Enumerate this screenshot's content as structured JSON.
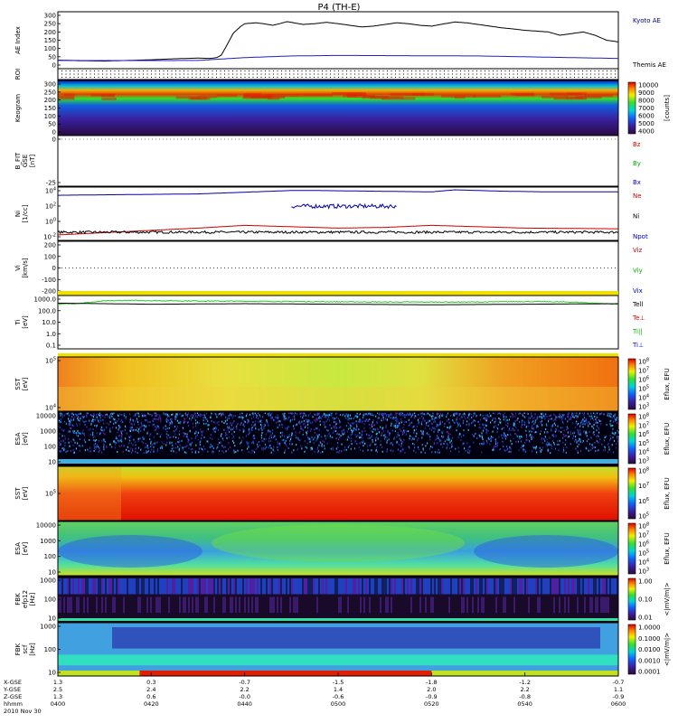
{
  "title": "P4 (TH-E)",
  "chart_data": {
    "type": "line",
    "title": "P4 (TH-E)",
    "x_axis": {
      "row_labels": [
        "X-GSE",
        "Y-GSE",
        "Z-GSE",
        "hhmm",
        "2010 Nov 30"
      ],
      "ticks": [
        {
          "X-GSE": "1.3",
          "Y-GSE": "2.5",
          "Z-GSE": "1.3",
          "hhmm": "0400"
        },
        {
          "X-GSE": "0.3",
          "Y-GSE": "2.4",
          "Z-GSE": "0.6",
          "hhmm": "0420"
        },
        {
          "X-GSE": "-0.7",
          "Y-GSE": "2.2",
          "Z-GSE": "-0.0",
          "hhmm": "0440"
        },
        {
          "X-GSE": "-1.5",
          "Y-GSE": "1.4",
          "Z-GSE": "-0.6",
          "hhmm": "0500"
        },
        {
          "X-GSE": "-1.8",
          "Y-GSE": "2.0",
          "Z-GSE": "-0.9",
          "hhmm": "0520"
        },
        {
          "X-GSE": "-1.2",
          "Y-GSE": "2.2",
          "Z-GSE": "-0.8",
          "hhmm": "0540"
        },
        {
          "X-GSE": "-0.7",
          "Y-GSE": "1.1",
          "Z-GSE": "-0.9",
          "hhmm": "0600"
        }
      ]
    },
    "panels": [
      {
        "id": "ae",
        "ylabel": "AE Index",
        "yticks": [
          "300",
          "250",
          "200",
          "150",
          "100",
          "50",
          "0"
        ],
        "ylim": [
          0,
          300
        ],
        "legend": [
          {
            "label": "Kyoto AE",
            "color": "#000080"
          },
          {
            "label": "Themis AE",
            "color": "#000000"
          }
        ],
        "series": [
          {
            "name": "Kyoto AE",
            "color": "#000000",
            "x": [
              0,
              5,
              10,
              15,
              20,
              25,
              30,
              35,
              40,
              45,
              50,
              55,
              60,
              65,
              68,
              70,
              72,
              75,
              78,
              80,
              85,
              88,
              90,
              92,
              95,
              98,
              100,
              105,
              110,
              115,
              120,
              125,
              130,
              135,
              140,
              145,
              150,
              155,
              160,
              165,
              170,
              175,
              180,
              185,
              190,
              195,
              200,
              205,
              210,
              215,
              220,
              225,
              230,
              235,
              240
            ],
            "y": [
              30,
              28,
              26,
              25,
              24,
              26,
              28,
              30,
              32,
              35,
              38,
              40,
              42,
              40,
              45,
              60,
              110,
              190,
              230,
              250,
              255,
              250,
              245,
              240,
              250,
              262,
              258,
              245,
              250,
              258,
              250,
              240,
              230,
              235,
              245,
              255,
              250,
              240,
              235,
              248,
              260,
              255,
              245,
              235,
              225,
              218,
              210,
              205,
              200,
              180,
              190,
              200,
              180,
              150,
              140
            ]
          },
          {
            "name": "Themis AE",
            "color": "#2020c0",
            "x": [
              0,
              20,
              40,
              60,
              80,
              100,
              120,
              140,
              160,
              180,
              200,
              220,
              240
            ],
            "y": [
              28,
              27,
              27,
              28,
              45,
              55,
              58,
              57,
              56,
              55,
              50,
              45,
              40
            ]
          }
        ]
      },
      {
        "id": "roi",
        "ylabel": "ROI"
      },
      {
        "id": "keogram",
        "ylabel": "Keogram",
        "type": "heatmap",
        "yticks": [
          "300",
          "250",
          "200",
          "150",
          "100",
          "50",
          "0"
        ],
        "colorbar": {
          "label": "[counts]",
          "ticks": [
            "10000",
            "9000",
            "8000",
            "7000",
            "6000",
            "5000",
            "4000"
          ]
        }
      },
      {
        "id": "bfit",
        "ylabel": "B_FIT\nGSE\n[nT]",
        "yticks": [
          "0",
          "-25"
        ],
        "legend": [
          {
            "label": "Bz",
            "color": "#cc0000"
          },
          {
            "label": "By",
            "color": "#00aa00"
          },
          {
            "label": "Bx",
            "color": "#0000cc"
          }
        ]
      },
      {
        "id": "ni",
        "ylabel": "Ni\n[1/cc]",
        "scale": "log",
        "yticks": [
          "10^4",
          "10^2",
          "10^0",
          "10^-2"
        ],
        "legend": [
          {
            "label": "Ne",
            "color": "#cc0000"
          },
          {
            "label": "Ni",
            "color": "#000000"
          },
          {
            "label": "Npot",
            "color": "#0000aa"
          }
        ],
        "series": [
          {
            "name": "Npot",
            "color": "#0000aa",
            "x": [
              0,
              60,
              100,
              110,
              160,
              170,
              190,
              210,
              240
            ],
            "log10_y": [
              3.8,
              4.0,
              4.5,
              4.5,
              4.3,
              4.6,
              4.4,
              4.3,
              4.3
            ]
          },
          {
            "name": "Ne",
            "color": "#cc0000",
            "x": [
              0,
              60,
              80,
              100,
              120,
              140,
              160,
              180,
              200,
              240
            ],
            "log10_y": [
              -2.0,
              -1.0,
              -0.6,
              -0.8,
              -1.0,
              -0.9,
              -0.6,
              -0.8,
              -1.0,
              -1.1
            ]
          },
          {
            "name": "Ni",
            "color": "#000000",
            "x": [
              0,
              60,
              120,
              180,
              240
            ],
            "log10_y": [
              -1.6,
              -1.6,
              -1.6,
              -1.6,
              -1.6
            ]
          }
        ]
      },
      {
        "id": "vi",
        "ylabel": "Vi\n[km/s]",
        "yticks": [
          "200",
          "100",
          "0",
          "-100",
          "-200"
        ],
        "ylim": [
          -250,
          250
        ],
        "legend": [
          {
            "label": "Viz",
            "color": "#cc0000"
          },
          {
            "label": "Viy",
            "color": "#00aa00"
          },
          {
            "label": "Vix",
            "color": "#0000cc"
          }
        ]
      },
      {
        "id": "ti",
        "ylabel": "Ti\n[eV]",
        "scale": "log",
        "yticks": [
          "1000.0",
          "100.0",
          "10.0",
          "1.0",
          "0.1"
        ],
        "legend": [
          {
            "label": "Tell",
            "color": "#000000"
          },
          {
            "label": "Te⊥",
            "color": "#cc0000"
          },
          {
            "label": "Ti||",
            "color": "#00aa00"
          },
          {
            "label": "Ti⊥",
            "color": "#0000cc"
          }
        ],
        "series": [
          {
            "name": "Ti||",
            "color": "#22cc22",
            "x": [
              0,
              10,
              20,
              30,
              60,
              100,
              140,
              180,
              200,
              220,
              240
            ],
            "log10_y": [
              2.8,
              2.9,
              3.1,
              3.15,
              3.1,
              3.05,
              3.0,
              3.0,
              3.05,
              3.0,
              2.8
            ]
          },
          {
            "name": "Tell",
            "color": "#000000",
            "x": [
              0,
              40,
              80,
              120,
              160,
              200,
              240
            ],
            "log10_y": [
              2.9,
              2.8,
              2.85,
              2.8,
              2.75,
              2.8,
              2.85
            ]
          }
        ]
      },
      {
        "id": "sst_e",
        "ylabel": "SST\n[eV]",
        "type": "heatmap",
        "yticks": [
          "10^5",
          "10^4"
        ],
        "colorbar": {
          "label": "Eflux, EFU",
          "ticks": [
            "10^8",
            "10^7",
            "10^6",
            "10^5",
            "10^4",
            "10^3"
          ]
        }
      },
      {
        "id": "esa_e",
        "ylabel": "ESA\n[eV]",
        "type": "heatmap",
        "yticks": [
          "10000",
          "1000",
          "100",
          "10"
        ],
        "colorbar": {
          "label": "Eflux, EFU",
          "ticks": [
            "10^8",
            "10^7",
            "10^6",
            "10^5",
            "10^4",
            "10^3"
          ]
        }
      },
      {
        "id": "sst_i",
        "ylabel": "SST\n[eV]",
        "type": "heatmap",
        "yticks": [
          "10^5"
        ],
        "colorbar": {
          "label": "Eflux, EFU",
          "ticks": [
            "10^8",
            "10^7",
            "10^6",
            "10^5"
          ]
        }
      },
      {
        "id": "esa_i",
        "ylabel": "ESA\n[eV]",
        "type": "heatmap",
        "yticks": [
          "10000",
          "1000",
          "100",
          "10"
        ],
        "colorbar": {
          "label": "Eflux, EFU",
          "ticks": [
            "10^8",
            "10^7",
            "10^6",
            "10^5",
            "10^4",
            "10^3"
          ]
        }
      },
      {
        "id": "fbk_e",
        "ylabel": "FBK\nefp12\n[Hz]",
        "type": "heatmap",
        "yticks": [
          "1000",
          "100",
          "10"
        ],
        "colorbar": {
          "label": "<|mV/m|>",
          "ticks": [
            "1.00",
            "0.10",
            "0.01"
          ]
        }
      },
      {
        "id": "fbk_b",
        "ylabel": "FBK\nscf\n[Hz]",
        "type": "heatmap",
        "yticks": [
          "1000",
          "100",
          "10"
        ],
        "colorbar": {
          "label": "<|mV/m|>",
          "ticks": [
            "1.0000",
            "0.1000",
            "0.0100",
            "0.0010",
            "0.0001"
          ]
        }
      }
    ]
  }
}
